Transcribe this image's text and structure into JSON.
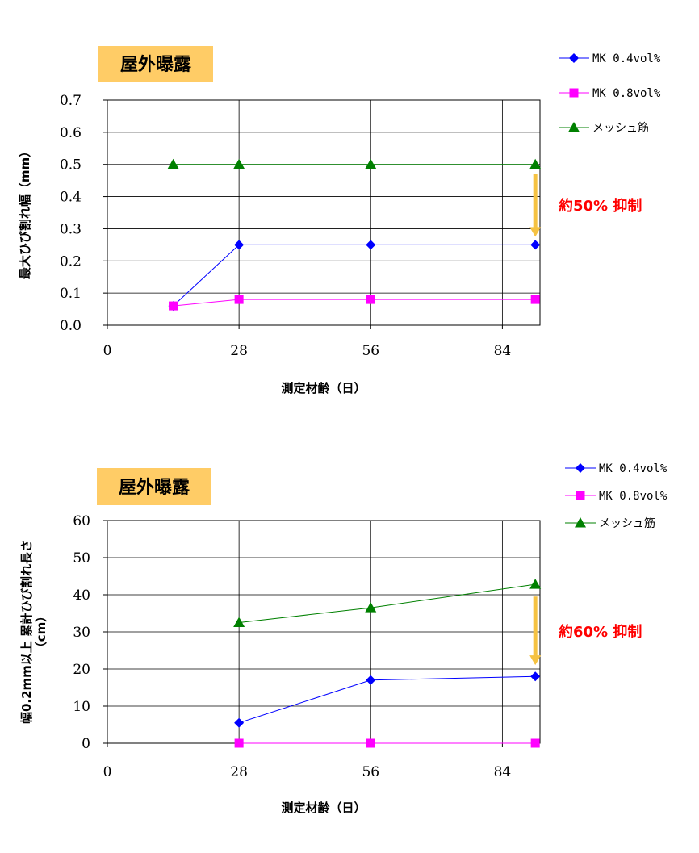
{
  "colors": {
    "title_bg": "#FFCC66",
    "arrow": "#F5C242",
    "annotation": "#FF0000"
  },
  "chart_data": [
    {
      "type": "line",
      "title": "屋外曝露",
      "xlabel": "測定材齢（日）",
      "ylabel": "最大ひび割れ幅（mm）",
      "xlim": [
        0,
        92
      ],
      "ylim": [
        0,
        0.7
      ],
      "xticks": [
        0,
        28,
        56,
        84
      ],
      "yticks": [
        0,
        0.1,
        0.2,
        0.3,
        0.4,
        0.5,
        0.6,
        0.7
      ],
      "ytick_labels": [
        "0.0",
        "0.1",
        "0.2",
        "0.3",
        "0.4",
        "0.5",
        "0.6",
        "0.7"
      ],
      "grid": true,
      "legend_position": "top-right",
      "series": [
        {
          "name": "MK 0.4vol%",
          "color": "#0000FF",
          "marker": "diamond",
          "x": [
            14,
            28,
            56,
            91
          ],
          "y": [
            0.06,
            0.25,
            0.25,
            0.25
          ]
        },
        {
          "name": "MK 0.8vol%",
          "color": "#FF00FF",
          "marker": "square",
          "x": [
            14,
            28,
            56,
            91
          ],
          "y": [
            0.06,
            0.08,
            0.08,
            0.08
          ]
        },
        {
          "name": "メッシュ筋",
          "color": "#008000",
          "marker": "triangle",
          "x": [
            14,
            28,
            56,
            91
          ],
          "y": [
            0.5,
            0.5,
            0.5,
            0.5
          ]
        }
      ],
      "annotation": {
        "text": "約50% 抑制",
        "x": 91,
        "from": 0.47,
        "to": 0.28
      }
    },
    {
      "type": "line",
      "title": "屋外曝露",
      "xlabel": "測定材齢（日）",
      "ylabel": "幅0.2mm以上 累計ひび割れ長さ（cm）",
      "ylabel_lines": [
        "幅0.2mm以上 累計ひび割れ長さ",
        "（cm）"
      ],
      "xlim": [
        0,
        92
      ],
      "ylim": [
        0,
        60
      ],
      "xticks": [
        0,
        28,
        56,
        84
      ],
      "yticks": [
        0,
        10,
        20,
        30,
        40,
        50,
        60
      ],
      "ytick_labels": [
        "0",
        "10",
        "20",
        "30",
        "40",
        "50",
        "60"
      ],
      "grid": true,
      "legend_position": "top-right",
      "series": [
        {
          "name": "MK 0.4vol%",
          "color": "#0000FF",
          "marker": "diamond",
          "x": [
            28,
            56,
            91
          ],
          "y": [
            5.5,
            17,
            18
          ]
        },
        {
          "name": "MK 0.8vol%",
          "color": "#FF00FF",
          "marker": "square",
          "x": [
            28,
            56,
            91
          ],
          "y": [
            0,
            0,
            0
          ]
        },
        {
          "name": "メッシュ筋",
          "color": "#008000",
          "marker": "triangle",
          "x": [
            28,
            56,
            91
          ],
          "y": [
            32.5,
            36.5,
            42.8
          ]
        }
      ],
      "annotation": {
        "text": "約60% 抑制",
        "x": 91,
        "from": 39.5,
        "to": 21.5
      }
    }
  ]
}
